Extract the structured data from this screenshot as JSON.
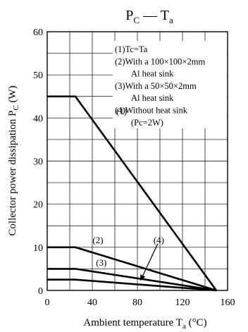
{
  "chart_data": {
    "type": "line",
    "title": {
      "main": "P",
      "main_sub": "C",
      "sep": " — ",
      "var": "T",
      "var_sub": "a"
    },
    "xlabel": {
      "text": "Ambient temperature  T",
      "sub": "a",
      "unit": "  (°C)"
    },
    "ylabel": {
      "text": "Collector power dissipation  P",
      "sub": "C",
      "unit": "  (W)"
    },
    "xlim": [
      0,
      160
    ],
    "ylim": [
      0,
      60
    ],
    "x_ticks": [
      0,
      40,
      80,
      120,
      160
    ],
    "x_tick_labels": [
      "0",
      "40",
      "80",
      "120",
      "160"
    ],
    "y_ticks": [
      0,
      10,
      20,
      30,
      40,
      50,
      60
    ],
    "y_tick_labels": [
      "0",
      "10",
      "20",
      "30",
      "40",
      "50",
      "60"
    ],
    "x_grid_step": 20,
    "y_grid_step": 5,
    "grid": true,
    "series": [
      {
        "name": "(1)",
        "x": [
          0,
          25,
          150
        ],
        "y": [
          45,
          45,
          0
        ]
      },
      {
        "name": "(2)",
        "x": [
          0,
          25,
          150
        ],
        "y": [
          10,
          10,
          0
        ]
      },
      {
        "name": "(3)",
        "x": [
          0,
          25,
          150
        ],
        "y": [
          5,
          5,
          0
        ]
      },
      {
        "name": "(4)",
        "x": [
          0,
          25,
          150
        ],
        "y": [
          2.5,
          2.5,
          0
        ]
      }
    ],
    "curve_labels": [
      {
        "text": "(1)",
        "x": 66,
        "y": 41.5
      },
      {
        "text": "(2)",
        "x": 45,
        "y": 11.6
      },
      {
        "text": "(3)",
        "x": 48,
        "y": 6.4
      },
      {
        "text": "(4)",
        "x": 99,
        "y": 11.6
      }
    ],
    "annotation_arrow": {
      "from": [
        98,
        10.8
      ],
      "to": [
        83,
        2.4
      ]
    },
    "legend": {
      "placement": "top-right",
      "lines": [
        "(1)Tc=Ta",
        "(2)With a 100×100×2mm",
        "Al heat sink",
        "(3)With a 50×50×2mm",
        "Al heat sink",
        "(4)Without heat sink",
        "(Pc=2W)"
      ]
    }
  }
}
